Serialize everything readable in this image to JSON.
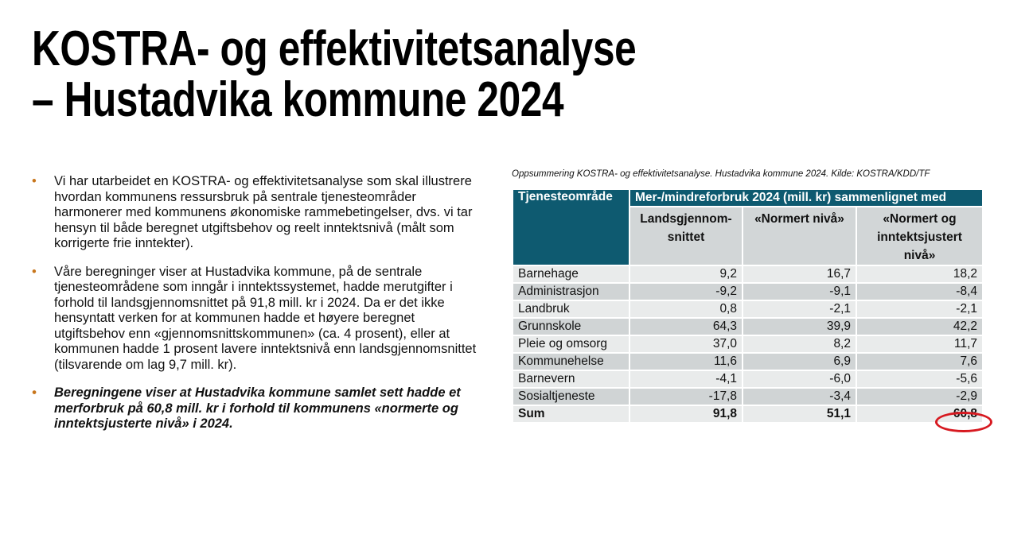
{
  "title": {
    "line1": "KOSTRA- og effektivitetsanalyse",
    "line2": "– Hustadvika kommune 2024"
  },
  "bullets": [
    "Vi har utarbeidet en KOSTRA- og effektivitetsanalyse som skal illustrere hvordan kommunens ressursbruk på sentrale tjenesteområder harmonerer med kommunens økonomiske rammebetingelser, dvs. vi tar hensyn til både beregnet utgiftsbehov og reelt inntektsnivå (målt som korrigerte frie inntekter).",
    "Våre beregninger viser at Hustadvika kommune, på de sentrale tjenesteområdene som inngår i inntektssystemet, hadde merutgifter i forhold til landsgjennomsnittet på 91,8 mill. kr i 2024. Da er det ikke hensyntatt verken for at kommunen hadde et høyere beregnet utgiftsbehov enn «gjennomsnittskommunen» (ca. 4 prosent), eller at kommunen hadde 1 prosent lavere inntektsnivå enn landsgjennomsnittet (tilsvarende om lag 9,7 mill. kr).",
    "Beregningene viser at Hustadvika kommune samlet sett hadde et merforbruk på 60,8 mill. kr i forhold til kommunens «normerte og inntektsjusterte nivå» i 2024."
  ],
  "table": {
    "caption": "Oppsummering KOSTRA- og effektivitetsanalyse. Hustadvika kommune 2024. Kilde: KOSTRA/KDD/TF",
    "col0": "Tjenesteområde",
    "group": "Mer-/mindreforbruk 2024 (mill. kr) sammenlignet med",
    "cols": [
      "Landsgjennom-snittet",
      "«Normert nivå»",
      "«Normert og inntektsjustert nivå»"
    ],
    "rows": [
      [
        "Barnehage",
        "9,2",
        "16,7",
        "18,2"
      ],
      [
        "Administrasjon",
        "-9,2",
        "-9,1",
        "-8,4"
      ],
      [
        "Landbruk",
        "0,8",
        "-2,1",
        "-2,1"
      ],
      [
        "Grunnskole",
        "64,3",
        "39,9",
        "42,2"
      ],
      [
        "Pleie og omsorg",
        "37,0",
        "8,2",
        "11,7"
      ],
      [
        "Kommunehelse",
        "11,6",
        "6,9",
        "7,6"
      ],
      [
        "Barnevern",
        "-4,1",
        "-6,0",
        "-5,6"
      ],
      [
        "Sosialtjeneste",
        "-17,8",
        "-3,4",
        "-2,9"
      ]
    ],
    "sum": [
      "Sum",
      "91,8",
      "51,1",
      "60,8"
    ]
  },
  "colors": {
    "header": "#0e5a70",
    "bullet": "#c8761c",
    "highlight": "#d71920"
  }
}
